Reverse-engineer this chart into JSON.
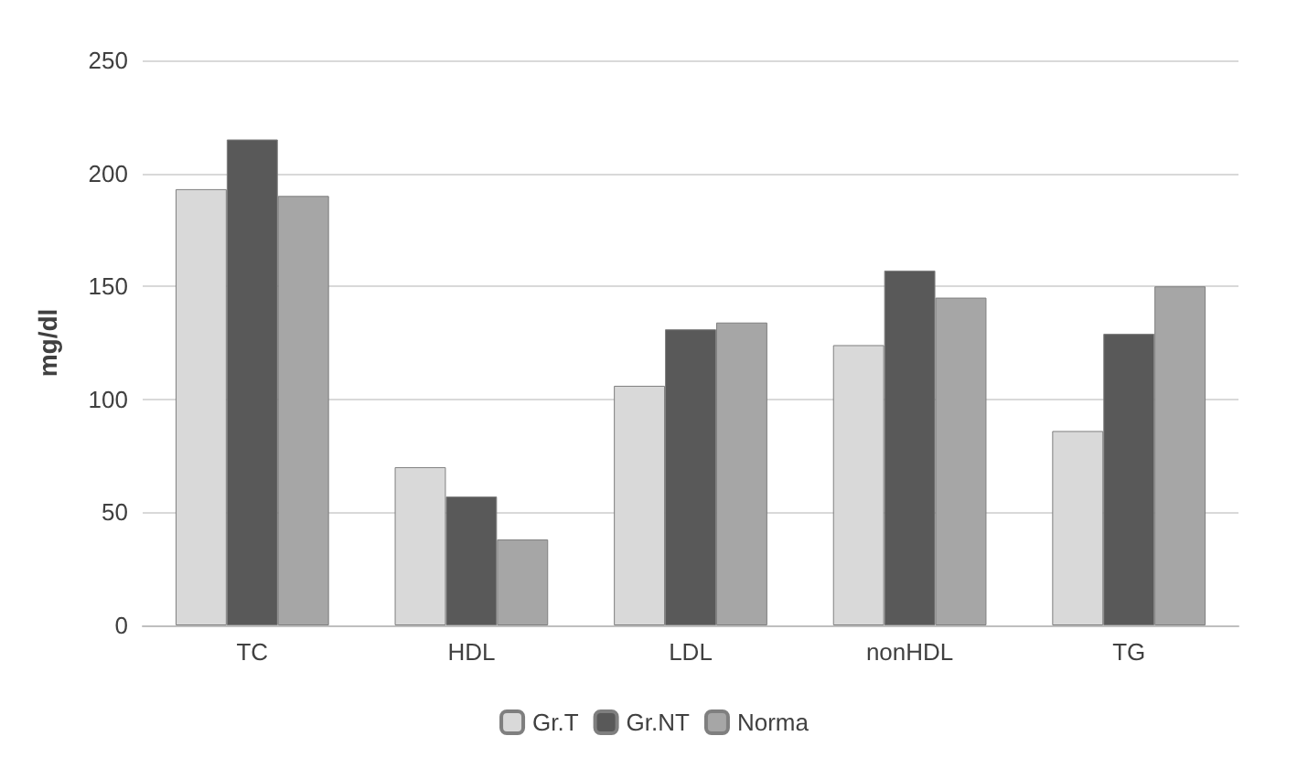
{
  "chart_data": {
    "type": "bar",
    "ylabel": "mg/dl",
    "categories": [
      "TC",
      "HDL",
      "LDL",
      "nonHDL",
      "TG"
    ],
    "series": [
      {
        "name": "Gr.T",
        "color": "#d9d9d9",
        "values": [
          193,
          70,
          106,
          124,
          86
        ]
      },
      {
        "name": "Gr.NT",
        "color": "#595959",
        "values": [
          215,
          57,
          131,
          157,
          129
        ]
      },
      {
        "name": "Norma",
        "color": "#a6a6a6",
        "values": [
          190,
          38,
          134,
          145,
          150
        ]
      }
    ],
    "ylim": [
      0,
      250
    ],
    "yticks": [
      0,
      50,
      100,
      150,
      200,
      250
    ],
    "grid": "y",
    "legend": "bottom"
  }
}
